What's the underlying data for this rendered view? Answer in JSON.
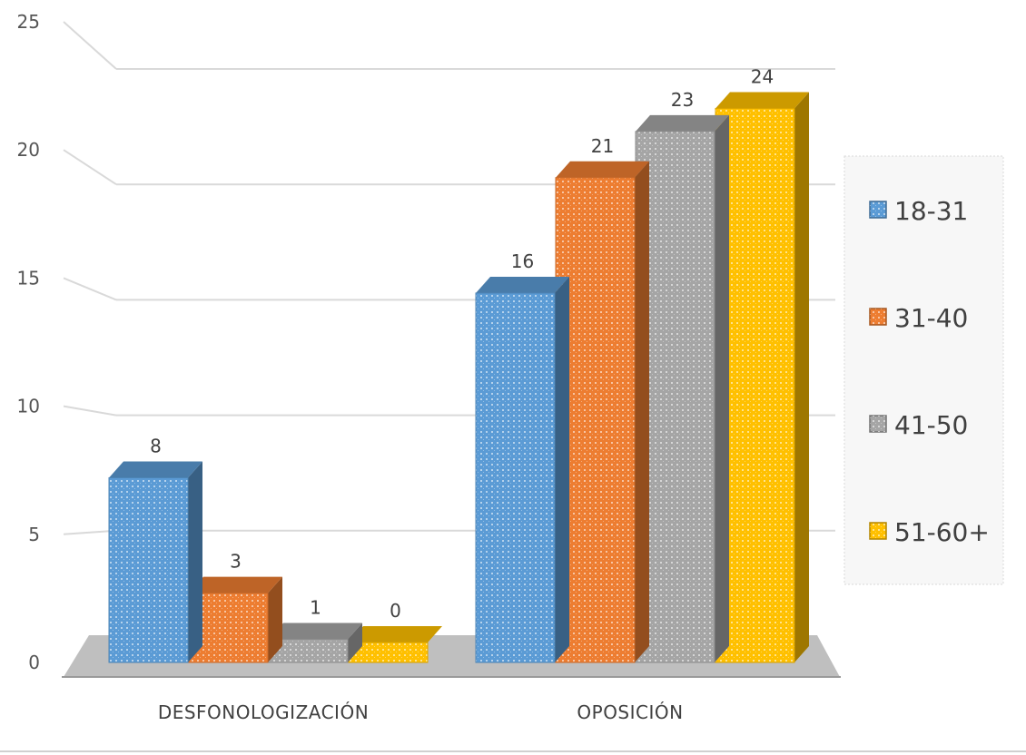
{
  "chart_data": {
    "type": "bar",
    "style": "3d-clustered-column",
    "categories": [
      "DESFONOLOGIZACIÓN",
      "OPOSICIÓN"
    ],
    "series": [
      {
        "name": "18-31",
        "values": [
          8,
          16
        ],
        "color": "#5B9BD5"
      },
      {
        "name": "31-40",
        "values": [
          3,
          21
        ],
        "color": "#ED7D31"
      },
      {
        "name": "41-50",
        "values": [
          1,
          23
        ],
        "color": "#A5A5A5"
      },
      {
        "name": "51-60+",
        "values": [
          0,
          24
        ],
        "color": "#FFC000"
      }
    ],
    "data_labels": [
      [
        "8",
        "16"
      ],
      [
        "3",
        "21"
      ],
      [
        "1",
        "23"
      ],
      [
        "0",
        "24"
      ]
    ],
    "y_ticks": [
      "0",
      "5",
      "10",
      "15",
      "20",
      "25"
    ],
    "ylim": [
      0,
      25
    ],
    "grid": true,
    "legend_position": "right"
  }
}
